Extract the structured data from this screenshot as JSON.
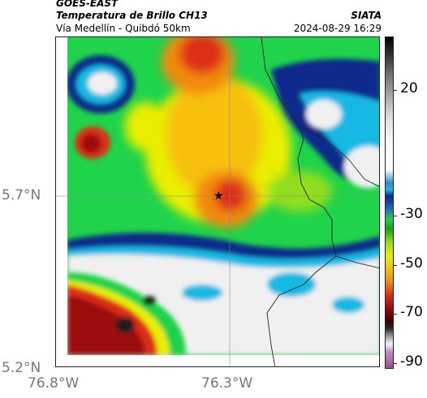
{
  "header": {
    "satellite": "GOES-EAST",
    "product": "Temperatura de Brillo CH13",
    "route": "Vía Medellín - Quibdó 50km",
    "org": "SIATA",
    "datetime": "2024-08-29 16:29"
  },
  "axes": {
    "y_labels": [
      "5.7°N",
      "5.2°N"
    ],
    "x_labels": [
      "76.8°W",
      "76.3°W"
    ]
  },
  "colorbar": {
    "labels": [
      "20",
      "-30",
      "-50",
      "-70",
      "-90"
    ],
    "colors": {
      "white_cold": "#f0f0f0",
      "dark_blue": "#0a2a8c",
      "cyan": "#16b9e3",
      "green": "#1fd34a",
      "yellow": "#e9ee06",
      "orange": "#f18a0f",
      "red": "#dd2d12",
      "dark_red": "#7a0a0a",
      "magenta": "#a3459f"
    }
  },
  "map": {
    "marker": "star-marker",
    "border": "country-border"
  }
}
